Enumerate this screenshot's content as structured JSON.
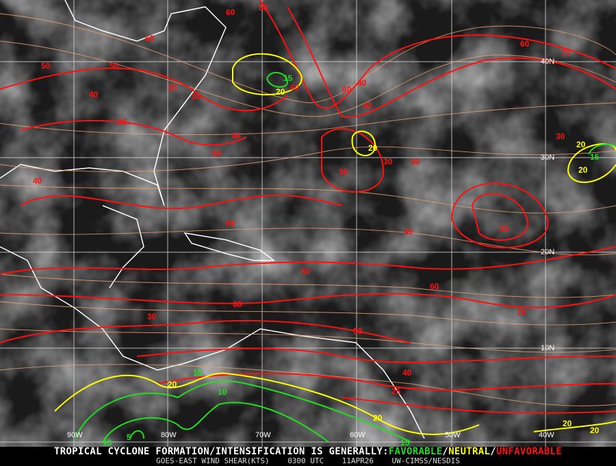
{
  "title_prefix": "TROPICAL CYCLONE FORMATION/INTENSIFICATION IS GENERALLY:",
  "legend": {
    "favorable": "FAVORABLE",
    "neutral": "NEUTRAL",
    "unfavorable": "UNFAVORABLE",
    "separator": "/",
    "colors": {
      "favorable": "#22dd22",
      "neutral": "#ffff00",
      "unfavorable": "#ff1010",
      "streamlines": "#f0a070"
    }
  },
  "subtitle": {
    "product": "GOES-EAST WIND SHEAR(KTS)",
    "time": "0300 UTC",
    "date": "11APR26",
    "source": "UW-CIMSS/NESDIS"
  },
  "longitude_labels": [
    "90W",
    "80W",
    "70W",
    "60W",
    "50W",
    "40W"
  ],
  "latitude_labels": [
    "40N",
    "30N",
    "20N",
    "10N"
  ],
  "contour_labels": [
    "60",
    "50",
    "60",
    "50",
    "40",
    "30",
    "30",
    "50",
    "40",
    "30",
    "15",
    "20",
    "60",
    "50",
    "40",
    "30",
    "70",
    "60",
    "50",
    "40",
    "20",
    "20",
    "30",
    "30",
    "40",
    "25",
    "30",
    "20",
    "15",
    "50",
    "40",
    "60",
    "70",
    "60",
    "50",
    "60",
    "40",
    "30",
    "25",
    "20",
    "20",
    "15",
    "10",
    "5",
    "10",
    "15",
    "20",
    "20"
  ]
}
